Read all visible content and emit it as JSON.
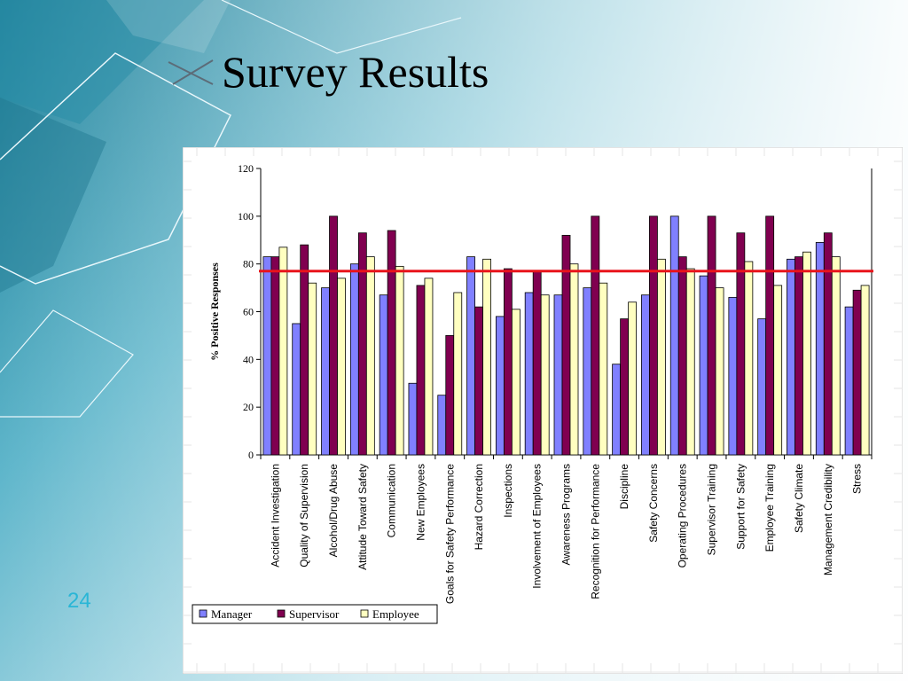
{
  "slide": {
    "title": "Survey Results",
    "number": "24"
  },
  "colors": {
    "manager": "#8080ff",
    "supervisor": "#800050",
    "employee": "#ffffc0",
    "reference_line": "#e8141b",
    "background_teal": "#3b9fb6"
  },
  "chart_data": {
    "type": "bar",
    "ylabel": "% Positive Responses",
    "xlabel": "",
    "ylim": [
      0,
      120
    ],
    "yticks": [
      0,
      20,
      40,
      60,
      80,
      100,
      120
    ],
    "reference_line": 77,
    "legend_placement": "bottom-left",
    "grid": false,
    "categories": [
      "Accident Investigation",
      "Quality of Supervision",
      "Alcohol/Drug Abuse",
      "Attitude Toward Safety",
      "Communication",
      "New Employees",
      "Goals for Safety Performance",
      "Hazard Correction",
      "Inspections",
      "Involvement of Employees",
      "Awareness Programs",
      "Recognition for Performance",
      "Discipline",
      "Safety Concerns",
      "Operating Procedures",
      "Supervisor Training",
      "Support for Safety",
      "Employee Training",
      "Safety Climate",
      "Management Credibility",
      "Stress"
    ],
    "series": [
      {
        "name": "Manager",
        "values": [
          83,
          55,
          70,
          80,
          67,
          30,
          25,
          83,
          58,
          68,
          67,
          70,
          38,
          67,
          100,
          75,
          66,
          57,
          82,
          89,
          62
        ]
      },
      {
        "name": "Supervisor",
        "values": [
          83,
          88,
          100,
          93,
          94,
          71,
          50,
          62,
          78,
          77,
          92,
          100,
          57,
          100,
          83,
          100,
          93,
          100,
          83,
          93,
          69
        ]
      },
      {
        "name": "Employee",
        "values": [
          87,
          72,
          74,
          83,
          79,
          74,
          68,
          82,
          61,
          67,
          80,
          72,
          64,
          82,
          78,
          70,
          81,
          71,
          85,
          83,
          71
        ]
      }
    ]
  }
}
